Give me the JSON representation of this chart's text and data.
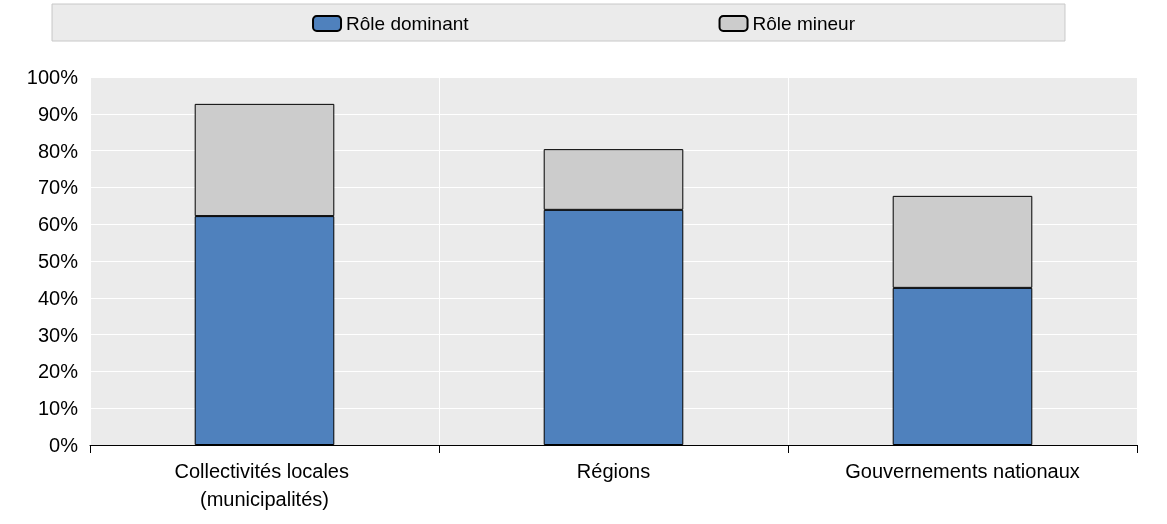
{
  "chart_data": {
    "type": "bar",
    "stacked": true,
    "categories": [
      "Collectivités locales (municipalités)",
      "Régions",
      "Gouvernements nationaux"
    ],
    "series": [
      {
        "name": "Rôle dominant",
        "color": "#4f81bd",
        "values": [
          62.2,
          63.9,
          42.7
        ]
      },
      {
        "name": "Rôle mineur",
        "color": "#cccccc",
        "values": [
          30.5,
          16.5,
          25
        ]
      }
    ],
    "ylim": [
      0,
      100
    ],
    "yticks": [
      {
        "value": 0,
        "label": "0%"
      },
      {
        "value": 10,
        "label": "10%"
      },
      {
        "value": 20,
        "label": "20%"
      },
      {
        "value": 30,
        "label": "30%"
      },
      {
        "value": 40,
        "label": "40%"
      },
      {
        "value": 50,
        "label": "50%"
      },
      {
        "value": 60,
        "label": "60%"
      },
      {
        "value": 70,
        "label": "70%"
      },
      {
        "value": 80,
        "label": "80%"
      },
      {
        "value": 90,
        "label": "90%"
      },
      {
        "value": 100,
        "label": "100%"
      }
    ],
    "grid": true,
    "legend": "top"
  }
}
